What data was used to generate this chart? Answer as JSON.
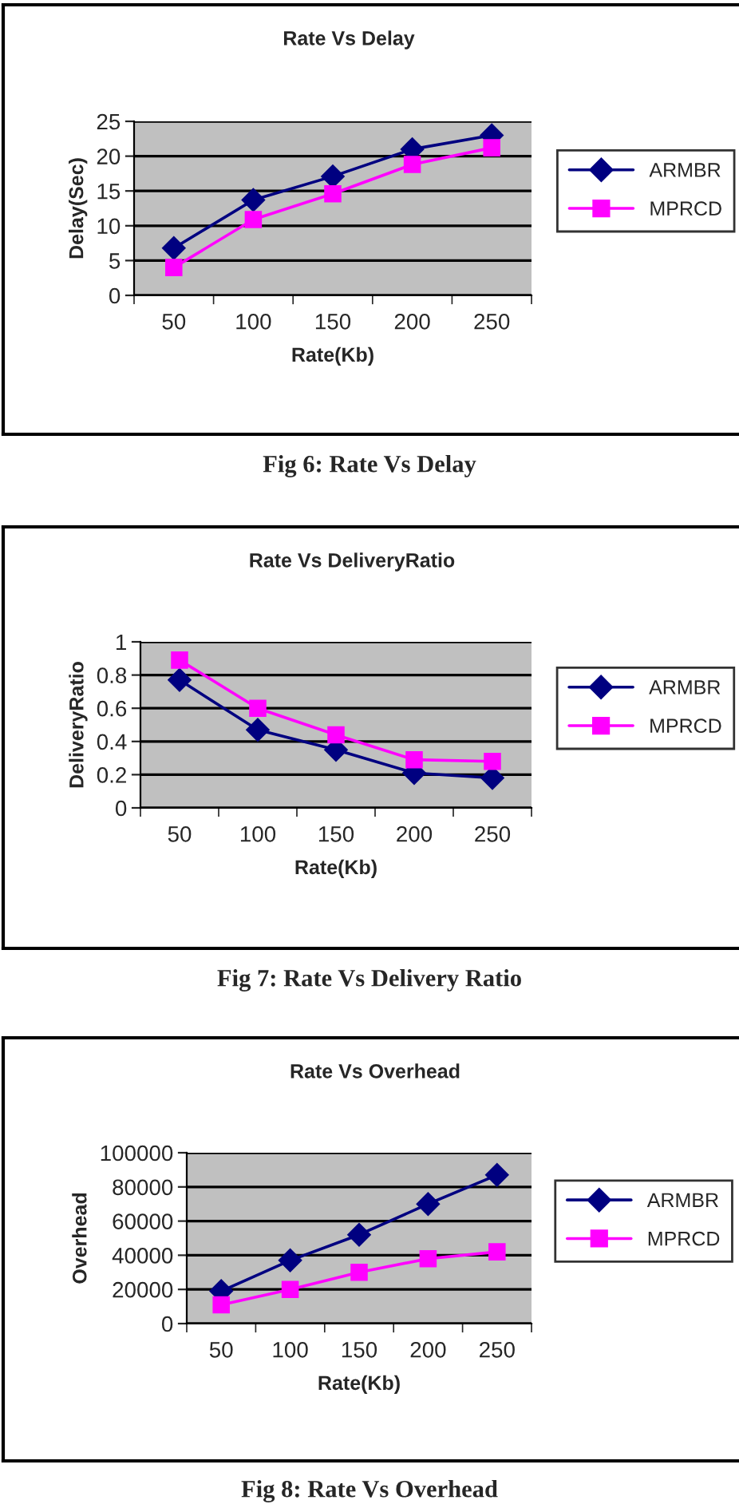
{
  "chart_data": [
    {
      "type": "line",
      "title": "Rate Vs Delay",
      "xlabel": "Rate(Kb)",
      "ylabel": "Delay(Sec)",
      "categories": [
        "50",
        "100",
        "150",
        "200",
        "250"
      ],
      "series": [
        {
          "name": "ARMBR",
          "color": "#000080",
          "marker": "diamond",
          "values": [
            6.8,
            13.7,
            17.1,
            21,
            23
          ]
        },
        {
          "name": "MPRCD",
          "color": "#ff00ff",
          "marker": "square",
          "values": [
            4,
            10.9,
            14.6,
            18.8,
            21.2
          ]
        }
      ],
      "ylim": [
        0,
        25
      ],
      "yticks": [
        0,
        5,
        10,
        15,
        20,
        25
      ],
      "grid": "y",
      "legend": "right",
      "annotations": [
        "Fig 6: Rate Vs Delay"
      ]
    },
    {
      "type": "line",
      "title": "Rate Vs DeliveryRatio",
      "xlabel": "Rate(Kb)",
      "ylabel": "DeliveryRatio",
      "categories": [
        "50",
        "100",
        "150",
        "200",
        "250"
      ],
      "series": [
        {
          "name": "ARMBR",
          "color": "#000080",
          "marker": "diamond",
          "values": [
            0.77,
            0.47,
            0.35,
            0.21,
            0.18
          ]
        },
        {
          "name": "MPRCD",
          "color": "#ff00ff",
          "marker": "square",
          "values": [
            0.89,
            0.6,
            0.44,
            0.29,
            0.28
          ]
        }
      ],
      "ylim": [
        0,
        1
      ],
      "yticks": [
        0,
        {
          "value": 0.2,
          "label": "0.2"
        },
        {
          "value": 0.4,
          "label": "0.4"
        },
        {
          "value": 0.6,
          "label": "0.6"
        },
        {
          "value": 0.8,
          "label": "0.8"
        },
        1
      ],
      "grid": "y",
      "legend": "right",
      "annotations": [
        "Fig 7: Rate Vs Delivery Ratio"
      ]
    },
    {
      "type": "line",
      "title": "Rate Vs Overhead",
      "xlabel": "Rate(Kb)",
      "ylabel": "Overhead",
      "categories": [
        "50",
        "100",
        "150",
        "200",
        "250"
      ],
      "series": [
        {
          "name": "ARMBR",
          "color": "#000080",
          "marker": "diamond",
          "values": [
            19000,
            37000,
            52000,
            70000,
            87000
          ]
        },
        {
          "name": "MPRCD",
          "color": "#ff00ff",
          "marker": "square",
          "values": [
            11000,
            20000,
            30000,
            38000,
            42000
          ]
        }
      ],
      "ylim": [
        0,
        100000
      ],
      "yticks": [
        0,
        20000,
        40000,
        60000,
        80000,
        100000
      ],
      "grid": "y",
      "legend": "right",
      "annotations": [
        "Fig 8: Rate Vs Overhead"
      ]
    }
  ]
}
